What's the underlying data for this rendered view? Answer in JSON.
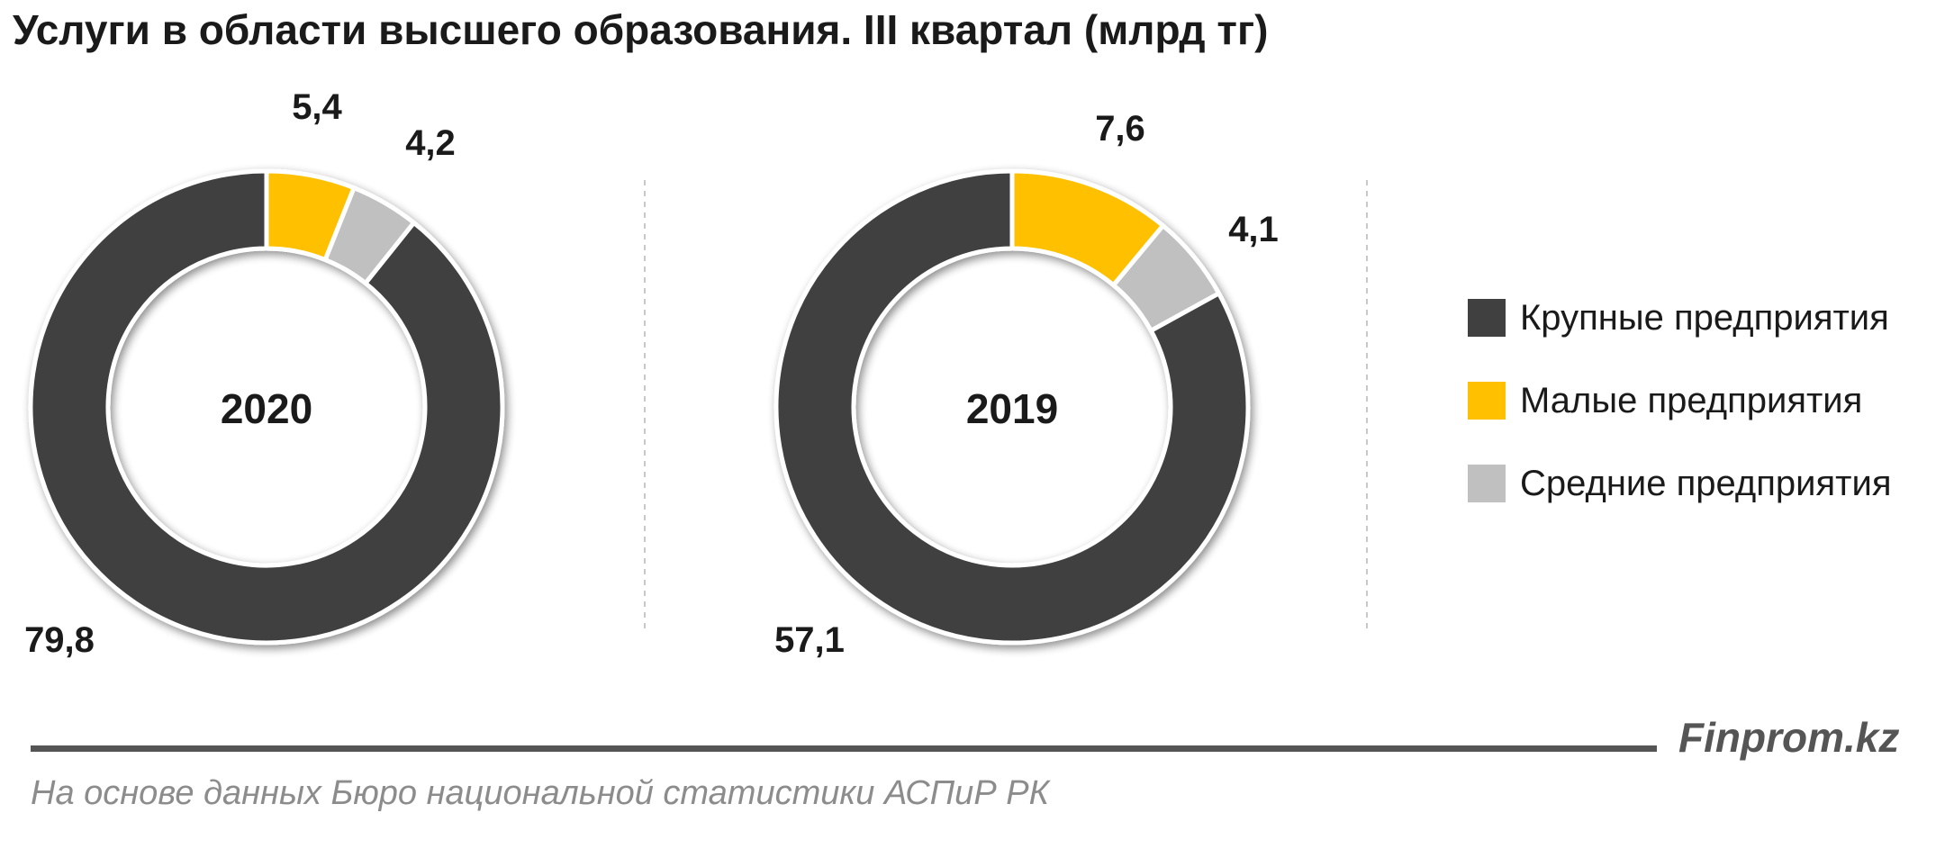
{
  "title": "Услуги в области высшего образования. III квартал (млрд тг)",
  "brand": "Finprom.kz",
  "source": "На основе данных  Бюро национальной  статистики АСПиР РК",
  "colors": {
    "large": "#404040",
    "small": "#ffc000",
    "medium": "#c0c0c0"
  },
  "chart_data": [
    {
      "type": "pie",
      "donut": true,
      "center_label": "2020",
      "slices": [
        {
          "series": "Крупные предприятия",
          "value": 79.8,
          "label": "79,8",
          "color": "#404040"
        },
        {
          "series": "Малые предприятия",
          "value": 5.4,
          "label": "5,4",
          "color": "#ffc000"
        },
        {
          "series": "Средние предприятия",
          "value": 4.2,
          "label": "4,2",
          "color": "#c0c0c0"
        }
      ]
    },
    {
      "type": "pie",
      "donut": true,
      "center_label": "2019",
      "slices": [
        {
          "series": "Крупные предприятия",
          "value": 57.1,
          "label": "57,1",
          "color": "#404040"
        },
        {
          "series": "Малые предприятия",
          "value": 7.6,
          "label": "7,6",
          "color": "#ffc000"
        },
        {
          "series": "Средние предприятия",
          "value": 4.1,
          "label": "4,1",
          "color": "#c0c0c0"
        }
      ]
    }
  ],
  "legend": [
    {
      "label": "Крупные предприятия",
      "color": "#404040"
    },
    {
      "label": "Малые предприятия",
      "color": "#ffc000"
    },
    {
      "label": "Средние предприятия",
      "color": "#c0c0c0"
    }
  ]
}
